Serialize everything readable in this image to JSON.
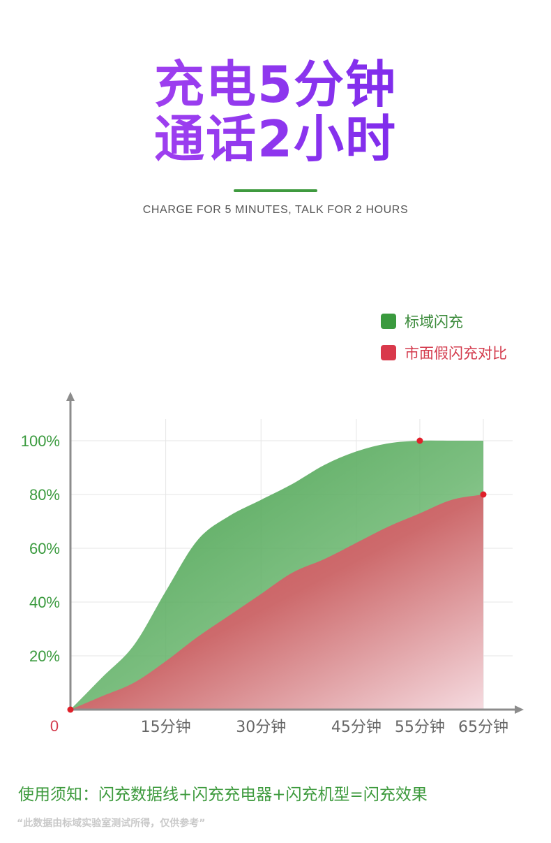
{
  "header": {
    "title_line1": "充电5分钟",
    "title_line2": "通话2小时",
    "subtitle": "CHARGE FOR 5 MINUTES, TALK FOR 2 HOURS"
  },
  "chart_data": {
    "type": "area",
    "x": [
      0,
      15,
      30,
      45,
      55,
      65
    ],
    "x_tick_labels": [
      "0",
      "15分钟",
      "30分钟",
      "45分钟",
      "55分钟",
      "65分钟"
    ],
    "y_tick_labels": [
      "20%",
      "40%",
      "60%",
      "80%",
      "100%"
    ],
    "y_ticks": [
      20,
      40,
      60,
      80,
      100
    ],
    "xlim": [
      0,
      65
    ],
    "ylim": [
      0,
      100
    ],
    "grid": true,
    "legend_position": "top-right",
    "series": [
      {
        "name": "标域闪充",
        "color": "#3a9a3e",
        "points": [
          [
            0,
            0
          ],
          [
            5,
            12
          ],
          [
            10,
            24
          ],
          [
            15,
            44
          ],
          [
            20,
            63
          ],
          [
            25,
            72
          ],
          [
            30,
            78
          ],
          [
            35,
            84
          ],
          [
            40,
            91
          ],
          [
            45,
            96
          ],
          [
            50,
            99
          ],
          [
            55,
            100
          ],
          [
            60,
            100
          ],
          [
            65,
            100
          ]
        ]
      },
      {
        "name": "市面假闪充对比",
        "color": "#d9394b",
        "points": [
          [
            0,
            0
          ],
          [
            5,
            5
          ],
          [
            10,
            10
          ],
          [
            15,
            18
          ],
          [
            20,
            27
          ],
          [
            25,
            35
          ],
          [
            30,
            43
          ],
          [
            35,
            51
          ],
          [
            40,
            56
          ],
          [
            45,
            62
          ],
          [
            50,
            68
          ],
          [
            55,
            73
          ],
          [
            60,
            78
          ],
          [
            65,
            80
          ]
        ]
      }
    ],
    "markers": [
      [
        0,
        0
      ],
      [
        55,
        100
      ],
      [
        65,
        80
      ]
    ]
  },
  "footer": {
    "note": "使用须知：闪充数据线+闪充充电器+闪充机型=闪充效果",
    "disclaimer": "“此数据由标域实验室测试所得，仅供参考”"
  }
}
